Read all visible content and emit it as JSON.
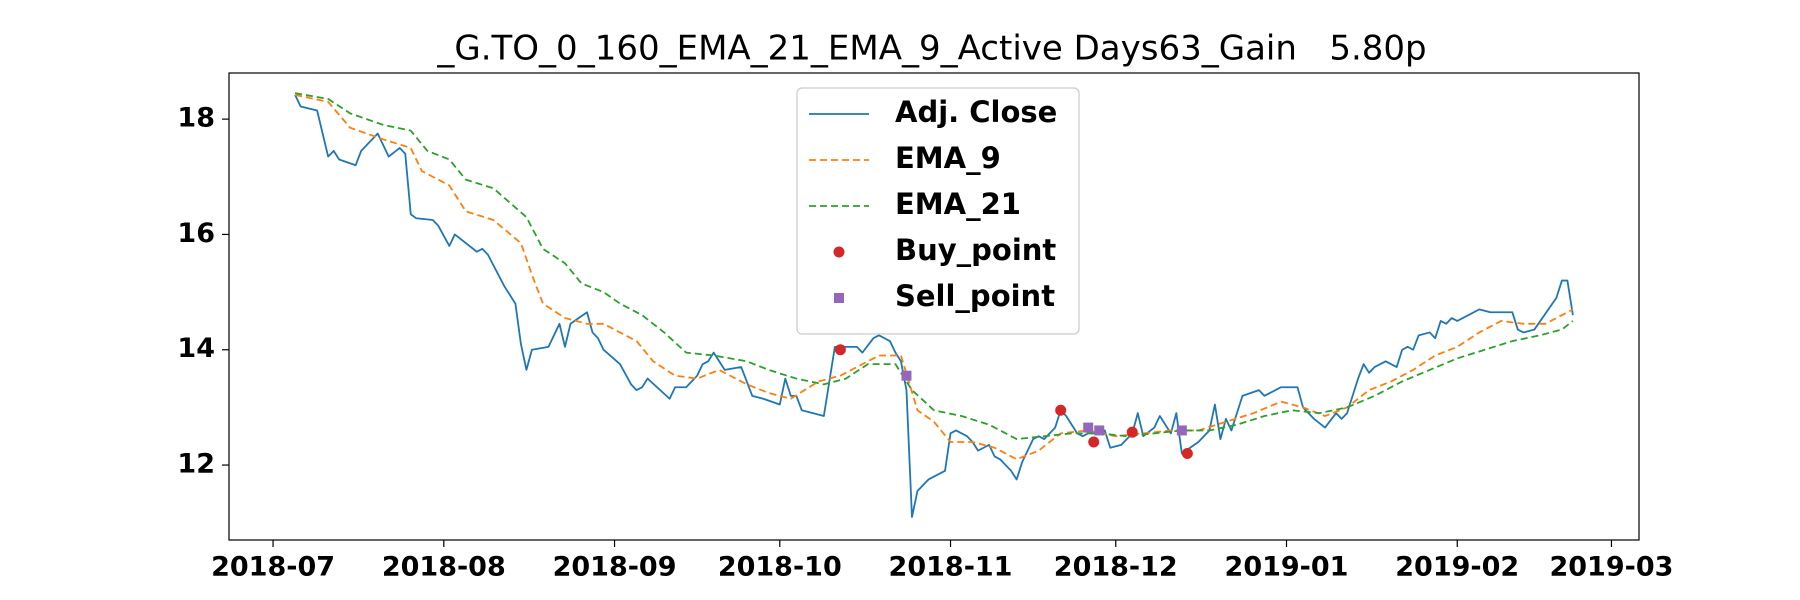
{
  "chart_data": {
    "type": "line",
    "title": "_G.TO_0_160_EMA_21_EMA_9_Active Days63_Gain   5.80p",
    "xlim": [
      -8,
      248
    ],
    "xticks": [
      {
        "value": 0,
        "label": "2018-07"
      },
      {
        "value": 31,
        "label": "2018-08"
      },
      {
        "value": 62,
        "label": "2018-09"
      },
      {
        "value": 92,
        "label": "2018-10"
      },
      {
        "value": 123,
        "label": "2018-11"
      },
      {
        "value": 153,
        "label": "2018-12"
      },
      {
        "value": 184,
        "label": "2019-01"
      },
      {
        "value": 215,
        "label": "2019-02"
      },
      {
        "value": 243,
        "label": "2019-03"
      }
    ],
    "ylim": [
      10.7,
      18.8
    ],
    "yticks": [
      12,
      14,
      16,
      18
    ],
    "grid": false,
    "legend": "upper center",
    "series": [
      {
        "name": "Adj. Close",
        "color": "#1f77b4",
        "style": "solid",
        "x": [
          4,
          5,
          8,
          10,
          11,
          12,
          15,
          16,
          19,
          21,
          23,
          24,
          25,
          26,
          29,
          30,
          32,
          33,
          37,
          38,
          39,
          42,
          44,
          45,
          46,
          47,
          50,
          52,
          53,
          54,
          57,
          58,
          59,
          60,
          63,
          65,
          66,
          67,
          68,
          72,
          73,
          75,
          77,
          78,
          79,
          80,
          82,
          85,
          87,
          89,
          92,
          93,
          94,
          95,
          96,
          100,
          102,
          104,
          106,
          107,
          109,
          110,
          112,
          113,
          114,
          115,
          116,
          117,
          119,
          121,
          122,
          123,
          124,
          126,
          127,
          128,
          130,
          131,
          132,
          134,
          135,
          136,
          138,
          139,
          140,
          142,
          143,
          144,
          146,
          147,
          148,
          150,
          151,
          152,
          154,
          156,
          157,
          158,
          160,
          161,
          163,
          164,
          165,
          168,
          170,
          171,
          172,
          173,
          174,
          176,
          179,
          180,
          183,
          186,
          187,
          189,
          191,
          193,
          194,
          195,
          197,
          198,
          199,
          200,
          202,
          204,
          205,
          206,
          207,
          208,
          210,
          211,
          212,
          213,
          214,
          215,
          217,
          219,
          221,
          225,
          226,
          227,
          229,
          233,
          234,
          235,
          236
        ],
        "values": [
          18.42,
          18.22,
          18.15,
          17.35,
          17.45,
          17.3,
          17.2,
          17.45,
          17.75,
          17.35,
          17.5,
          17.4,
          16.35,
          16.28,
          16.25,
          16.15,
          15.8,
          16.0,
          15.7,
          15.75,
          15.65,
          15.1,
          14.8,
          14.1,
          13.65,
          14.0,
          14.05,
          14.45,
          14.05,
          14.45,
          14.65,
          14.3,
          14.2,
          14.0,
          13.75,
          13.4,
          13.3,
          13.35,
          13.5,
          13.15,
          13.35,
          13.35,
          13.55,
          13.75,
          13.8,
          13.95,
          13.65,
          13.7,
          13.2,
          13.15,
          13.05,
          13.5,
          13.2,
          13.2,
          12.95,
          12.85,
          14.05,
          14.05,
          14.05,
          13.95,
          14.2,
          14.25,
          14.15,
          13.95,
          13.8,
          13.3,
          11.1,
          11.55,
          11.75,
          11.85,
          11.9,
          12.55,
          12.6,
          12.5,
          12.4,
          12.25,
          12.35,
          12.15,
          12.1,
          11.9,
          11.75,
          12.05,
          12.45,
          12.5,
          12.45,
          12.65,
          12.95,
          12.85,
          12.55,
          12.5,
          12.55,
          12.55,
          12.6,
          12.3,
          12.35,
          12.55,
          12.9,
          12.5,
          12.65,
          12.85,
          12.55,
          12.9,
          12.2,
          12.4,
          12.6,
          13.05,
          12.45,
          12.8,
          12.6,
          13.2,
          13.3,
          13.2,
          13.35,
          13.35,
          13.0,
          12.8,
          12.65,
          12.9,
          12.8,
          12.9,
          13.5,
          13.75,
          13.6,
          13.7,
          13.8,
          13.7,
          14.0,
          14.05,
          14.0,
          14.25,
          14.3,
          14.2,
          14.5,
          14.45,
          14.55,
          14.5,
          14.6,
          14.7,
          14.65,
          14.65,
          14.35,
          14.3,
          14.35,
          14.9,
          15.2,
          15.2,
          14.6
        ]
      },
      {
        "name": "EMA_9",
        "color": "#ff7f0e",
        "style": "dashed",
        "x": [
          4,
          10,
          14,
          20,
          25,
          27,
          32,
          35,
          40,
          45,
          47,
          49,
          53,
          57,
          60,
          63,
          66,
          69,
          73,
          77,
          81,
          86,
          90,
          94,
          99,
          103,
          107,
          110,
          114,
          117,
          120,
          123,
          127,
          131,
          135,
          139,
          143,
          148,
          153,
          158,
          163,
          168,
          173,
          178,
          183,
          187,
          191,
          195,
          199,
          203,
          207,
          211,
          215,
          219,
          223,
          227,
          231,
          234,
          236
        ],
        "values": [
          18.42,
          18.3,
          17.85,
          17.65,
          17.5,
          17.1,
          16.85,
          16.4,
          16.25,
          15.85,
          15.3,
          14.8,
          14.55,
          14.45,
          14.45,
          14.3,
          14.15,
          13.8,
          13.55,
          13.5,
          13.65,
          13.4,
          13.25,
          13.15,
          13.45,
          13.55,
          13.75,
          13.9,
          13.9,
          12.95,
          12.75,
          12.4,
          12.4,
          12.3,
          12.1,
          12.25,
          12.55,
          12.6,
          12.5,
          12.55,
          12.6,
          12.6,
          12.75,
          12.9,
          13.1,
          13.0,
          12.85,
          13.0,
          13.3,
          13.45,
          13.65,
          13.9,
          14.05,
          14.3,
          14.5,
          14.45,
          14.45,
          14.6,
          14.7
        ]
      },
      {
        "name": "EMA_21",
        "color": "#2ca02c",
        "style": "dashed",
        "x": [
          4,
          10,
          14,
          20,
          25,
          28,
          32,
          35,
          40,
          43,
          46,
          49,
          53,
          56,
          60,
          63,
          67,
          71,
          75,
          80,
          86,
          90,
          95,
          100,
          104,
          108,
          113,
          116,
          120,
          125,
          130,
          135,
          140,
          145,
          150,
          155,
          160,
          165,
          170,
          175,
          180,
          185,
          190,
          195,
          200,
          205,
          210,
          215,
          220,
          225,
          230,
          234,
          236
        ],
        "values": [
          18.45,
          18.35,
          18.1,
          17.9,
          17.8,
          17.45,
          17.3,
          16.95,
          16.8,
          16.55,
          16.3,
          15.75,
          15.5,
          15.15,
          15.0,
          14.8,
          14.6,
          14.3,
          13.95,
          13.9,
          13.8,
          13.65,
          13.5,
          13.4,
          13.5,
          13.75,
          13.75,
          13.3,
          12.95,
          12.85,
          12.7,
          12.45,
          12.5,
          12.55,
          12.55,
          12.5,
          12.55,
          12.6,
          12.6,
          12.7,
          12.85,
          12.95,
          12.9,
          13.0,
          13.2,
          13.45,
          13.65,
          13.85,
          14.0,
          14.15,
          14.25,
          14.35,
          14.5
        ]
      },
      {
        "name": "Buy_point",
        "color": "#d62728",
        "style": "marker",
        "marker": "circle",
        "x": [
          103,
          143,
          149,
          156,
          166
        ],
        "values": [
          14.0,
          12.95,
          12.4,
          12.57,
          12.2
        ]
      },
      {
        "name": "Sell_point",
        "color": "#9467bd",
        "style": "marker",
        "marker": "square",
        "x": [
          115,
          148,
          150,
          165
        ],
        "values": [
          13.55,
          12.65,
          12.6,
          12.6
        ]
      }
    ]
  }
}
